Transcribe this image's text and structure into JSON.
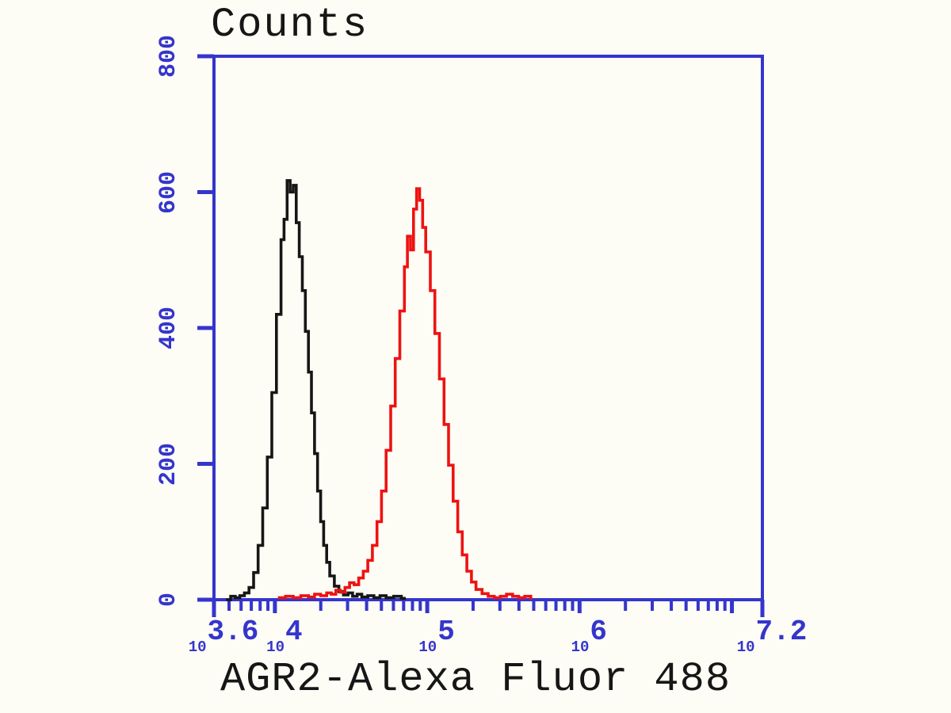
{
  "title": "Counts",
  "x_axis_title": "AGR2-Alexa Fluor 488",
  "colors": {
    "axis": "#3535cd",
    "black_series": "#161616",
    "red_series": "#ee1212",
    "background": "#fdfdf5",
    "text": "#161616"
  },
  "y_axis": {
    "min": 0,
    "max": 800,
    "ticks": [
      {
        "value": 0,
        "label": "0"
      },
      {
        "value": 200,
        "label": "200"
      },
      {
        "value": 400,
        "label": "400"
      },
      {
        "value": 600,
        "label": "600"
      },
      {
        "value": 800,
        "label": "800"
      }
    ]
  },
  "x_axis": {
    "scale": "log10",
    "min_exponent": 3.6,
    "max_exponent": 7.2,
    "labeled_ticks": [
      {
        "exponent": 3.6,
        "base": "10",
        "exp_label": "3.6"
      },
      {
        "exponent": 4,
        "base": "10",
        "exp_label": "4"
      },
      {
        "exponent": 5,
        "base": "10",
        "exp_label": "5"
      },
      {
        "exponent": 6,
        "base": "10",
        "exp_label": "6"
      },
      {
        "exponent": 7.2,
        "base": "10",
        "exp_label": "7.2"
      }
    ],
    "edge_ticks": [
      3.6,
      7.2
    ],
    "decade_ticks": [
      4,
      5,
      6,
      7
    ],
    "minor_ticks": [
      3.699,
      3.778,
      3.845,
      3.903,
      3.954,
      4.301,
      4.477,
      4.602,
      4.699,
      4.778,
      4.845,
      4.903,
      4.954,
      5.301,
      5.477,
      5.602,
      5.699,
      5.778,
      5.845,
      5.903,
      5.954,
      6.301,
      6.477,
      6.602,
      6.699,
      6.778,
      6.845,
      6.903,
      6.954
    ]
  },
  "chart_data": {
    "type": "line",
    "style": "step-histogram",
    "title": "Counts",
    "xlabel": "AGR2-Alexa Fluor 488",
    "ylabel": "Counts",
    "ylim": [
      0,
      800
    ],
    "xlim_log10": [
      3.6,
      7.2
    ],
    "grid": false,
    "legend": "none",
    "series": [
      {
        "name": "black",
        "color": "#161616",
        "peak": {
          "x_log10": 4.08,
          "count": 617
        },
        "points": [
          [
            3.68,
            0
          ],
          [
            3.71,
            5
          ],
          [
            3.74,
            3
          ],
          [
            3.77,
            6
          ],
          [
            3.8,
            10
          ],
          [
            3.83,
            18
          ],
          [
            3.86,
            40
          ],
          [
            3.89,
            80
          ],
          [
            3.92,
            135
          ],
          [
            3.95,
            210
          ],
          [
            3.98,
            305
          ],
          [
            4.01,
            420
          ],
          [
            4.04,
            530
          ],
          [
            4.06,
            560
          ],
          [
            4.08,
            617
          ],
          [
            4.1,
            600
          ],
          [
            4.12,
            610
          ],
          [
            4.14,
            555
          ],
          [
            4.16,
            505
          ],
          [
            4.18,
            455
          ],
          [
            4.2,
            395
          ],
          [
            4.22,
            335
          ],
          [
            4.24,
            275
          ],
          [
            4.26,
            215
          ],
          [
            4.28,
            160
          ],
          [
            4.3,
            115
          ],
          [
            4.32,
            80
          ],
          [
            4.34,
            55
          ],
          [
            4.36,
            35
          ],
          [
            4.39,
            20
          ],
          [
            4.42,
            12
          ],
          [
            4.45,
            7
          ],
          [
            4.48,
            10
          ],
          [
            4.51,
            5
          ],
          [
            4.54,
            8
          ],
          [
            4.57,
            4
          ],
          [
            4.61,
            6
          ],
          [
            4.65,
            3
          ],
          [
            4.69,
            6
          ],
          [
            4.73,
            3
          ],
          [
            4.78,
            5
          ],
          [
            4.83,
            2
          ],
          [
            4.85,
            0
          ]
        ]
      },
      {
        "name": "red",
        "color": "#ee1212",
        "peak": {
          "x_log10": 4.93,
          "count": 605
        },
        "points": [
          [
            4.02,
            3
          ],
          [
            4.07,
            5
          ],
          [
            4.12,
            3
          ],
          [
            4.17,
            6
          ],
          [
            4.22,
            4
          ],
          [
            4.26,
            8
          ],
          [
            4.3,
            6
          ],
          [
            4.34,
            10
          ],
          [
            4.37,
            8
          ],
          [
            4.4,
            14
          ],
          [
            4.43,
            11
          ],
          [
            4.46,
            18
          ],
          [
            4.49,
            25
          ],
          [
            4.52,
            22
          ],
          [
            4.55,
            32
          ],
          [
            4.58,
            42
          ],
          [
            4.61,
            58
          ],
          [
            4.64,
            80
          ],
          [
            4.67,
            115
          ],
          [
            4.7,
            160
          ],
          [
            4.73,
            220
          ],
          [
            4.76,
            285
          ],
          [
            4.79,
            355
          ],
          [
            4.82,
            425
          ],
          [
            4.85,
            490
          ],
          [
            4.87,
            535
          ],
          [
            4.89,
            515
          ],
          [
            4.91,
            575
          ],
          [
            4.93,
            605
          ],
          [
            4.95,
            588
          ],
          [
            4.97,
            548
          ],
          [
            4.99,
            512
          ],
          [
            5.02,
            455
          ],
          [
            5.05,
            392
          ],
          [
            5.08,
            325
          ],
          [
            5.11,
            258
          ],
          [
            5.14,
            198
          ],
          [
            5.17,
            145
          ],
          [
            5.2,
            100
          ],
          [
            5.23,
            66
          ],
          [
            5.26,
            42
          ],
          [
            5.29,
            26
          ],
          [
            5.32,
            15
          ],
          [
            5.36,
            9
          ],
          [
            5.4,
            5
          ],
          [
            5.44,
            3
          ],
          [
            5.48,
            5
          ],
          [
            5.52,
            8
          ],
          [
            5.56,
            5
          ],
          [
            5.6,
            3
          ],
          [
            5.64,
            5
          ],
          [
            5.68,
            0
          ]
        ]
      }
    ]
  }
}
